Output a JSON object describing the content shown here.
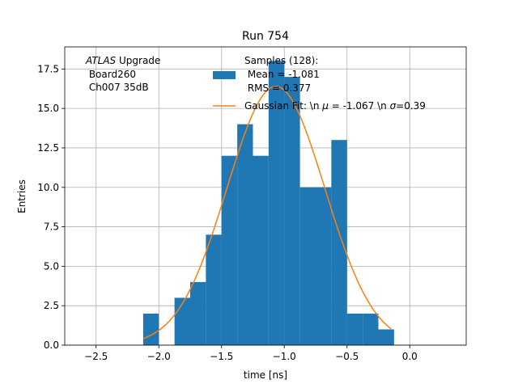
{
  "chart_data": {
    "type": "bar",
    "title": "Run 754",
    "xlabel": "time [ns]",
    "ylabel": "Entries",
    "xlim": [
      -2.75,
      0.45
    ],
    "ylim": [
      0,
      18.9
    ],
    "grid": true,
    "xticks": [
      {
        "value": -2.5,
        "label": "−2.5"
      },
      {
        "value": -2.0,
        "label": "−2.0"
      },
      {
        "value": -1.5,
        "label": "−1.5"
      },
      {
        "value": -1.0,
        "label": "−1.0"
      },
      {
        "value": -0.5,
        "label": "−0.5"
      },
      {
        "value": 0.0,
        "label": "0.0"
      }
    ],
    "yticks": [
      {
        "value": 0,
        "label": "0.0"
      },
      {
        "value": 2.5,
        "label": "2.5"
      },
      {
        "value": 5,
        "label": "5.0"
      },
      {
        "value": 7.5,
        "label": "7.5"
      },
      {
        "value": 10,
        "label": "10.0"
      },
      {
        "value": 12.5,
        "label": "12.5"
      },
      {
        "value": 15,
        "label": "15.0"
      },
      {
        "value": 17.5,
        "label": "17.5"
      }
    ],
    "annotation": {
      "atlas": "ATLAS",
      "upgrade": " Upgrade",
      "board": " Board260",
      "channel": " Ch007 35dB"
    },
    "histogram": {
      "name_lines": [
        "Samples (128):",
        " Mean = -1.081",
        " RMS = 0.377"
      ],
      "color": "#1f77b4",
      "bin_edges": [
        -2.125,
        -2.0,
        -1.875,
        -1.75,
        -1.625,
        -1.5,
        -1.375,
        -1.25,
        -1.125,
        -1.0,
        -0.875,
        -0.75,
        -0.625,
        -0.5,
        -0.375,
        -0.25,
        -0.125
      ],
      "counts": [
        2,
        0,
        3,
        4,
        7,
        12,
        14,
        12,
        18,
        17,
        10,
        10,
        13,
        2,
        2,
        1
      ]
    },
    "fit": {
      "name": "Gaussian Fit: \\n μ = -1.067 \\n σ=0.39",
      "label_prefix": "Gaussian Fit: \\n ",
      "mu_symbol": "μ",
      "label_mid": " = -1.067 \\n ",
      "sigma_symbol": "σ",
      "label_suffix": "=0.39",
      "color": "#ff7f0e",
      "mu": -1.067,
      "sigma": 0.39,
      "amplitude": 16.4,
      "x_range": [
        -2.12,
        -0.15
      ]
    },
    "legend_placement": "top-right"
  }
}
